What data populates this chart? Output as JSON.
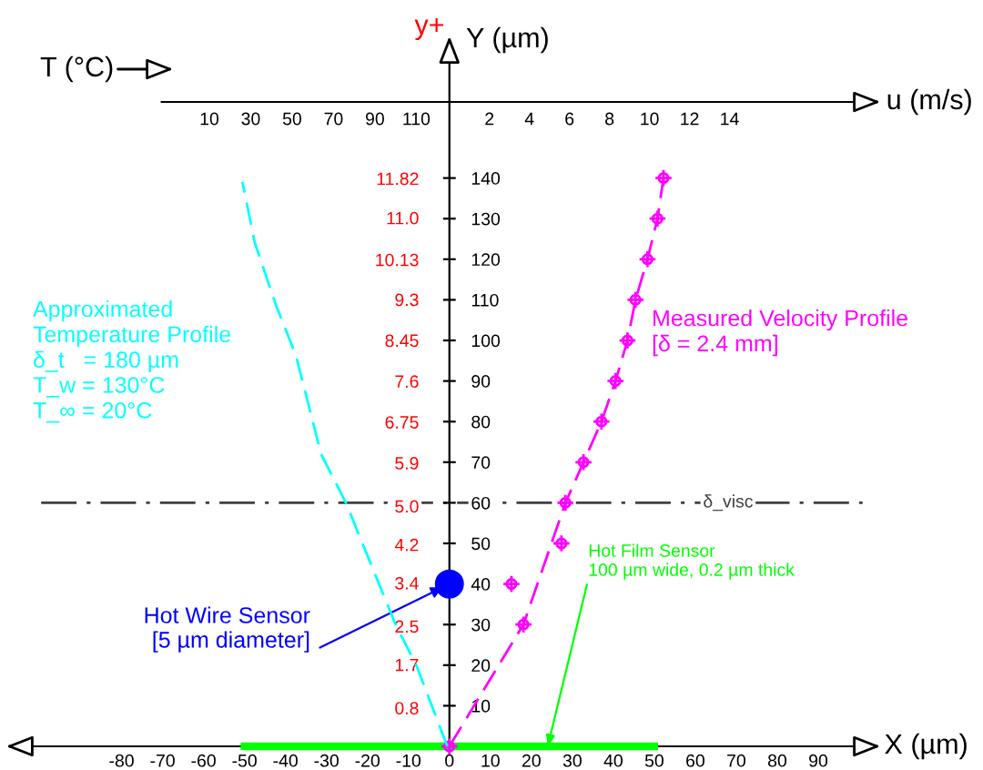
{
  "chart_data": [
    {
      "type": "scatter",
      "xlabel": "X (µm)",
      "ylabel": "Y (µm)",
      "y2label": "y+",
      "x2label": "u (m/s)",
      "xlim": [
        -107,
        104
      ],
      "xticks": [
        -80,
        -70,
        -60,
        -50,
        -40,
        -30,
        -20,
        -10,
        0,
        10,
        20,
        30,
        40,
        50,
        60,
        70,
        80,
        90
      ],
      "ylim": [
        0,
        174
      ],
      "yticks": [
        10,
        20,
        30,
        40,
        50,
        60,
        70,
        80,
        90,
        100,
        110,
        120,
        130,
        140
      ],
      "y2lim": [
        0,
        14.7
      ],
      "y2ticks": [
        0.8,
        1.7,
        2.5,
        3.4,
        4.2,
        {
          "value": 5,
          "label": "5.0"
        },
        5.9,
        6.75,
        7.6,
        8.45,
        9.3,
        10.13,
        {
          "value": 11,
          "label": "11.0"
        },
        11.82
      ],
      "x2lim": [
        0,
        21.3
      ],
      "x2ticks": [
        2,
        4,
        6,
        8,
        10,
        12,
        14
      ],
      "grid": false,
      "legend": false,
      "series": [
        {
          "name": "Measured Velocity Profile\n[δ = 2.4 mm]",
          "axis": "x2",
          "color": "#ff00ff",
          "marker": "cross",
          "x": [
            10.7,
            10.4,
            9.9,
            9.3,
            8.9,
            8.3,
            7.6,
            6.7,
            5.8,
            5.6,
            3.1,
            3.7,
            0
          ],
          "values": [
            140,
            130,
            120,
            110,
            100,
            90,
            80,
            70,
            60,
            50,
            40,
            30,
            0
          ]
        },
        {
          "type": "line",
          "axis": "x2",
          "color": "#ff00ff",
          "line_style": "dashed",
          "x": [
            0,
            3.7,
            5.8,
            6.7,
            7.6,
            8.3,
            8.9,
            9.3,
            9.9,
            10.4,
            10.7
          ],
          "values": [
            0,
            30,
            60,
            70,
            80,
            90,
            100,
            110,
            120,
            130,
            140
          ]
        },
        {
          "type": "line",
          "color": "#00ff00",
          "line_style": "solid",
          "x": [
            -50,
            50
          ],
          "values": [
            0,
            0
          ]
        },
        {
          "color": "#0000ff",
          "marker": "circle",
          "x": [
            0
          ],
          "values": [
            40
          ]
        }
      ],
      "ref_lines": [
        {
          "axis": "y",
          "value": 60,
          "label": "δ_visc",
          "color": "#404040",
          "line_style": "dashdot"
        }
      ],
      "annotations": [
        {
          "text": "Hot Wire Sensor\n[5 µm diameter]",
          "x": 0,
          "y": 40
        },
        {
          "text": "Hot Film Sensor\n100 µm wide, 0.2 µm thick",
          "x": 24,
          "y": 0
        }
      ]
    },
    {
      "type": "line",
      "xlabel": "T (°C)",
      "xlim": [
        -13,
        126
      ],
      "xticks": [
        10,
        30,
        50,
        70,
        90,
        110
      ],
      "ylim": [
        0,
        174
      ],
      "tick_labels": "x",
      "series": [
        {
          "name": "Approximated\nTemperature Profile\nδ_t   = 180 µm\nT_w = 130°C\nT_∞ = 20°C",
          "color": "#00ffff",
          "line_style": "dashed",
          "x": [
            125,
            110,
            100,
            76,
            64,
            52,
            42,
            32,
            26
          ],
          "values": [
            0,
            20,
            30,
            60,
            72,
            96,
            109,
            124,
            139
          ]
        }
      ]
    }
  ]
}
